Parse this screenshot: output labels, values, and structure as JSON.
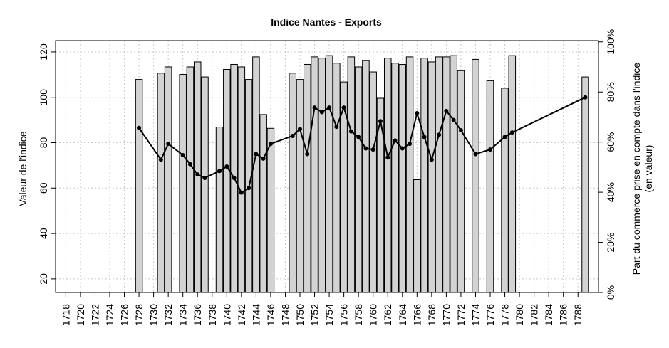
{
  "chart_data": {
    "type": "bar+line",
    "title": "Indice Nantes - Exports",
    "ylabel_left": "Valeur de l'indice",
    "ylabel_right_line1": "Part du commerce prise en compte dans l'indice",
    "ylabel_right_line2": "(en valeur)",
    "x_range": [
      1718,
      1789
    ],
    "x_tick_labels": [
      "1718",
      "1720",
      "1722",
      "1724",
      "1726",
      "1728",
      "1730",
      "1732",
      "1734",
      "1736",
      "1738",
      "1740",
      "1742",
      "1744",
      "1746",
      "1748",
      "1750",
      "1752",
      "1754",
      "1756",
      "1758",
      "1760",
      "1762",
      "1764",
      "1766",
      "1768",
      "1770",
      "1772",
      "1774",
      "1776",
      "1778",
      "1780",
      "1782",
      "1784",
      "1786",
      "1788"
    ],
    "y_left_range": [
      14,
      125
    ],
    "y_left_ticks": [
      20,
      40,
      60,
      80,
      100,
      120
    ],
    "y_left_tick_labels": [
      "20",
      "40",
      "60",
      "80",
      "100",
      "120"
    ],
    "y_right_ticks": [
      0,
      20,
      40,
      60,
      80,
      100
    ],
    "y_right_tick_labels": [
      "0%",
      "20%",
      "40%",
      "60%",
      "80%",
      "100%"
    ],
    "grid": true,
    "colors": {
      "bar_fill": "#d3d3d3",
      "bar_stroke": "#000000",
      "line": "#000000",
      "grid": "#c8c8c8"
    },
    "bars": {
      "name": "Part du commerce prise en compte dans l'indice (en valeur)",
      "unit": "percent",
      "years": [
        1728,
        1731,
        1732,
        1734,
        1735,
        1736,
        1737,
        1739,
        1740,
        1741,
        1742,
        1743,
        1744,
        1745,
        1746,
        1749,
        1750,
        1751,
        1752,
        1753,
        1754,
        1755,
        1756,
        1757,
        1758,
        1759,
        1760,
        1761,
        1762,
        1763,
        1764,
        1765,
        1766,
        1767,
        1768,
        1769,
        1770,
        1771,
        1772,
        1774,
        1776,
        1778,
        1779,
        1789
      ],
      "values": [
        85,
        87.5,
        90,
        87,
        90,
        92,
        86,
        66,
        89,
        91,
        90,
        85,
        94,
        71,
        65.5,
        87.5,
        85,
        91,
        94,
        93.5,
        94.5,
        91.5,
        84,
        94,
        90,
        92.5,
        88,
        77.5,
        93.5,
        91.5,
        91,
        94,
        45,
        93.5,
        92,
        94,
        94,
        94.5,
        88.5,
        93,
        84.5,
        81.5,
        94.5,
        86
      ]
    },
    "series": [
      {
        "name": "Valeur de l'indice",
        "type": "line",
        "x": [
          1728,
          1731,
          1732,
          1734,
          1735,
          1736,
          1737,
          1739,
          1740,
          1741,
          1742,
          1743,
          1744,
          1745,
          1746,
          1749,
          1750,
          1751,
          1752,
          1753,
          1754,
          1755,
          1756,
          1757,
          1758,
          1759,
          1760,
          1761,
          1762,
          1763,
          1764,
          1765,
          1766,
          1767,
          1768,
          1769,
          1770,
          1771,
          1772,
          1774,
          1776,
          1778,
          1779,
          1789
        ],
        "y": [
          86.5,
          72.5,
          79.5,
          74.5,
          70.5,
          66,
          64.5,
          67.5,
          69.5,
          64.5,
          58,
          60,
          75,
          73,
          79.5,
          83,
          86,
          75,
          95.5,
          93.5,
          95.5,
          87,
          95.5,
          85,
          82.5,
          77.5,
          77,
          89.5,
          73.5,
          81,
          77.5,
          79.5,
          93,
          82.5,
          72.5,
          83.5,
          94,
          90,
          85.5,
          75,
          77,
          82.5,
          84.5,
          100
        ]
      }
    ]
  }
}
